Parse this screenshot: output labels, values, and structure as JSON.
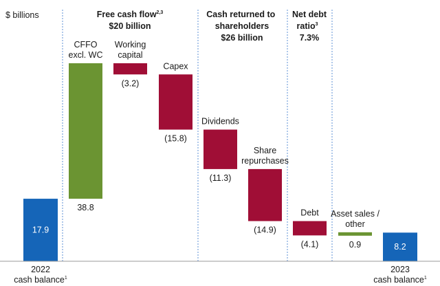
{
  "chart_data": {
    "type": "bar",
    "subtype": "waterfall",
    "unit_label": "$ billions",
    "colors": {
      "balance": "#1565b8",
      "inflow": "#6b9432",
      "outflow": "#a00e36",
      "divider": "#5b8fd6"
    },
    "sections": [
      {
        "title": "Free cash flow",
        "title_sup": "2,3",
        "value": "$20 billion"
      },
      {
        "title": "Cash returned to shareholders",
        "value": "$26 billion"
      },
      {
        "title": "Net debt ratio",
        "title_sup": "3",
        "value": "7.3%"
      }
    ],
    "ylim": [
      0,
      56.7
    ],
    "bars": [
      {
        "id": "start",
        "label": "2022 cash balance",
        "label_sup": "1",
        "kind": "balance",
        "start": 0,
        "end": 17.9,
        "value_text": "17.9"
      },
      {
        "id": "cffo",
        "label": "CFFO excl. WC",
        "kind": "inflow",
        "start": 17.9,
        "end": 56.7,
        "value_text": "38.8"
      },
      {
        "id": "wc",
        "label": "Working capital",
        "kind": "outflow",
        "start": 56.7,
        "end": 53.5,
        "value_text": "(3.2)"
      },
      {
        "id": "capex",
        "label": "Capex",
        "kind": "outflow",
        "start": 53.5,
        "end": 37.7,
        "value_text": "(15.8)"
      },
      {
        "id": "div",
        "label": "Dividends",
        "kind": "outflow",
        "start": 37.7,
        "end": 26.4,
        "value_text": "(11.3)"
      },
      {
        "id": "buyback",
        "label": "Share repurchases",
        "kind": "outflow",
        "start": 26.4,
        "end": 11.5,
        "value_text": "(14.9)"
      },
      {
        "id": "debt",
        "label": "Debt",
        "kind": "outflow",
        "start": 11.5,
        "end": 7.4,
        "value_text": "(4.1)"
      },
      {
        "id": "asset",
        "label": "Asset sales / other",
        "kind": "inflow",
        "start": 7.4,
        "end": 8.3,
        "value_text": "0.9"
      },
      {
        "id": "end",
        "label": "2023 cash balance",
        "label_sup": "1",
        "kind": "balance",
        "start": 0,
        "end": 8.2,
        "value_text": "8.2"
      }
    ]
  }
}
